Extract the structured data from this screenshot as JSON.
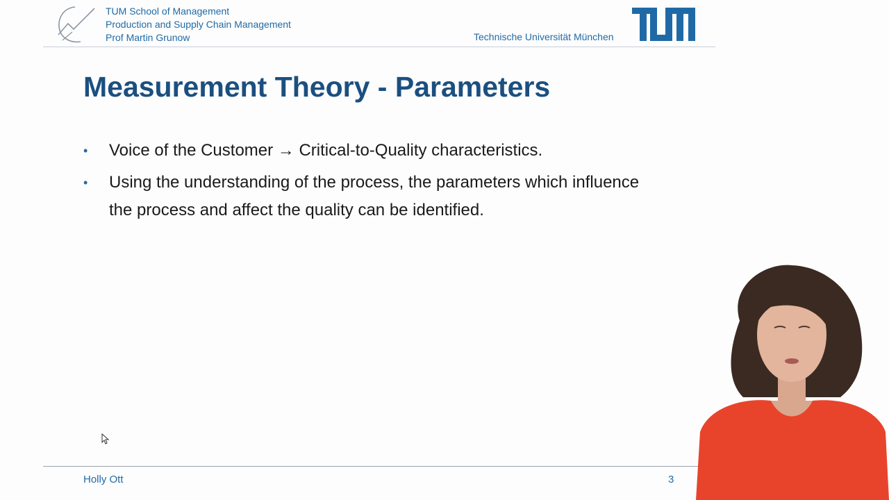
{
  "header": {
    "school": "TUM School of Management",
    "chair": "Production and Supply Chain Management",
    "professor": "Prof Martin Grunow",
    "university": "Technische Universität München",
    "logo_text": "TUM"
  },
  "slide": {
    "title": "Measurement Theory - Parameters",
    "bullet_marker": "•",
    "bullets": [
      "Voice of the Customer → Critical-to-Quality characteristics.",
      "Using the understanding of the process, the parameters which influence the process and affect the quality can be identified."
    ]
  },
  "footer": {
    "presenter_name": "Holly Ott",
    "page_number": "3"
  },
  "colors": {
    "accent_blue": "#1f6aa6",
    "title_blue": "#1b4f80",
    "presenter_top": "#e8442c"
  },
  "icons": [
    "tum-swoosh-logo",
    "tum-logo",
    "mouse-cursor-icon"
  ]
}
